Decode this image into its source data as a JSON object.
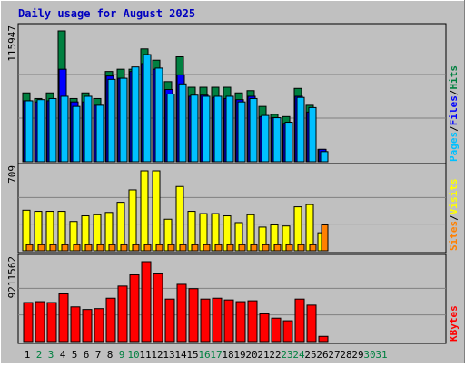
{
  "title": "Daily usage for August 2025",
  "colors": {
    "background": "#c0c0c0",
    "title": "#0000c0",
    "hits": "#008040",
    "files": "#0000ff",
    "pages": "#00c0ff",
    "visits": "#ffff00",
    "sites": "#ff8000",
    "kbytes": "#ff0000",
    "weekday": "#000000",
    "weekend": "#008040"
  },
  "chart_data": [
    {
      "type": "bar",
      "panel": "hits-files-pages",
      "categories": [
        "1",
        "2",
        "3",
        "4",
        "5",
        "6",
        "7",
        "8",
        "9",
        "10",
        "11",
        "12",
        "13",
        "14",
        "15",
        "16",
        "17",
        "18",
        "19",
        "20",
        "21",
        "22",
        "23",
        "24",
        "25",
        "26",
        "27",
        "28",
        "29",
        "30",
        "31"
      ],
      "max_label": "115947",
      "ylim": [
        0,
        115947
      ],
      "side_labels": [
        {
          "text": "Pages",
          "color": "#00c0ff"
        },
        {
          "text": "/",
          "color": "#000000"
        },
        {
          "text": "Files",
          "color": "#0000ff"
        },
        {
          "text": "/",
          "color": "#000000"
        },
        {
          "text": "Hits",
          "color": "#008040"
        }
      ],
      "series": [
        {
          "name": "Hits",
          "values": [
            61000,
            56000,
            61000,
            115947,
            56000,
            61000,
            56000,
            80000,
            82000,
            82000,
            100000,
            90000,
            71000,
            93000,
            66000,
            66000,
            66000,
            66000,
            61000,
            63000,
            49000,
            42000,
            40000,
            65000,
            50000,
            11000,
            null,
            null,
            null,
            null,
            null
          ]
        },
        {
          "name": "Files",
          "values": [
            54000,
            53000,
            54000,
            82000,
            53000,
            53000,
            50000,
            76000,
            74000,
            80000,
            87000,
            82000,
            64000,
            77000,
            58000,
            59000,
            57000,
            56000,
            55000,
            58000,
            40000,
            39000,
            34000,
            58000,
            44000,
            11000,
            null,
            null,
            null,
            null,
            null
          ]
        },
        {
          "name": "Pages",
          "values": [
            54000,
            55000,
            56000,
            58000,
            49000,
            58000,
            50000,
            73000,
            74000,
            84000,
            95000,
            83000,
            60000,
            69000,
            59000,
            58000,
            58000,
            58000,
            53000,
            56000,
            41000,
            39000,
            35000,
            57000,
            48000,
            9000,
            null,
            null,
            null,
            null,
            null
          ]
        }
      ]
    },
    {
      "type": "bar",
      "panel": "visits-sites",
      "categories": [
        "1",
        "2",
        "3",
        "4",
        "5",
        "6",
        "7",
        "8",
        "9",
        "10",
        "11",
        "12",
        "13",
        "14",
        "15",
        "16",
        "17",
        "18",
        "19",
        "20",
        "21",
        "22",
        "23",
        "24",
        "25",
        "26",
        "27",
        "28",
        "29",
        "30",
        "31"
      ],
      "max_label": "709",
      "ylim": [
        0,
        709
      ],
      "side_labels": [
        {
          "text": "Sites",
          "color": "#ff8000"
        },
        {
          "text": "/",
          "color": "#000000"
        },
        {
          "text": "Visits",
          "color": "#ffff00"
        }
      ],
      "series": [
        {
          "name": "Visits",
          "values": [
            360,
            350,
            350,
            350,
            260,
            310,
            320,
            340,
            430,
            540,
            709,
            709,
            280,
            570,
            350,
            330,
            330,
            310,
            250,
            320,
            210,
            230,
            220,
            390,
            410,
            160,
            null,
            null,
            null,
            null,
            null
          ]
        },
        {
          "name": "Sites",
          "values": [
            54,
            54,
            54,
            54,
            54,
            54,
            54,
            54,
            54,
            54,
            54,
            54,
            54,
            54,
            54,
            54,
            54,
            54,
            54,
            54,
            54,
            54,
            54,
            54,
            54,
            230,
            null,
            null,
            null,
            null,
            null
          ]
        }
      ]
    },
    {
      "type": "bar",
      "panel": "kbytes",
      "categories": [
        "1",
        "2",
        "3",
        "4",
        "5",
        "6",
        "7",
        "8",
        "9",
        "10",
        "11",
        "12",
        "13",
        "14",
        "15",
        "16",
        "17",
        "18",
        "19",
        "20",
        "21",
        "22",
        "23",
        "24",
        "25",
        "26",
        "27",
        "28",
        "29",
        "30",
        "31"
      ],
      "max_label": "9211562",
      "ylim": [
        0,
        9211562
      ],
      "side_labels": [
        {
          "text": "KBytes",
          "color": "#ff0000"
        }
      ],
      "series": [
        {
          "name": "KBytes",
          "values": [
            4500000,
            4600000,
            4500000,
            5500000,
            4000000,
            3700000,
            3800000,
            5000000,
            6400000,
            7700000,
            9211562,
            7900000,
            4900000,
            6600000,
            6100000,
            4900000,
            5000000,
            4800000,
            4600000,
            4700000,
            3200000,
            2700000,
            2400000,
            4900000,
            4200000,
            600000,
            null,
            null,
            null,
            null,
            null
          ]
        }
      ]
    }
  ],
  "days": [
    {
      "label": "1",
      "weekend": false
    },
    {
      "label": "2",
      "weekend": true
    },
    {
      "label": "3",
      "weekend": true
    },
    {
      "label": "4",
      "weekend": false
    },
    {
      "label": "5",
      "weekend": false
    },
    {
      "label": "6",
      "weekend": false
    },
    {
      "label": "7",
      "weekend": false
    },
    {
      "label": "8",
      "weekend": false
    },
    {
      "label": "9",
      "weekend": true
    },
    {
      "label": "10",
      "weekend": true
    },
    {
      "label": "11",
      "weekend": false
    },
    {
      "label": "12",
      "weekend": false
    },
    {
      "label": "13",
      "weekend": false
    },
    {
      "label": "14",
      "weekend": false
    },
    {
      "label": "15",
      "weekend": false
    },
    {
      "label": "16",
      "weekend": true
    },
    {
      "label": "17",
      "weekend": true
    },
    {
      "label": "18",
      "weekend": false
    },
    {
      "label": "19",
      "weekend": false
    },
    {
      "label": "20",
      "weekend": false
    },
    {
      "label": "21",
      "weekend": false
    },
    {
      "label": "22",
      "weekend": false
    },
    {
      "label": "23",
      "weekend": true
    },
    {
      "label": "24",
      "weekend": true
    },
    {
      "label": "25",
      "weekend": false
    },
    {
      "label": "26",
      "weekend": false
    },
    {
      "label": "27",
      "weekend": false
    },
    {
      "label": "28",
      "weekend": false
    },
    {
      "label": "29",
      "weekend": false
    },
    {
      "label": "30",
      "weekend": true
    },
    {
      "label": "31",
      "weekend": true
    }
  ]
}
